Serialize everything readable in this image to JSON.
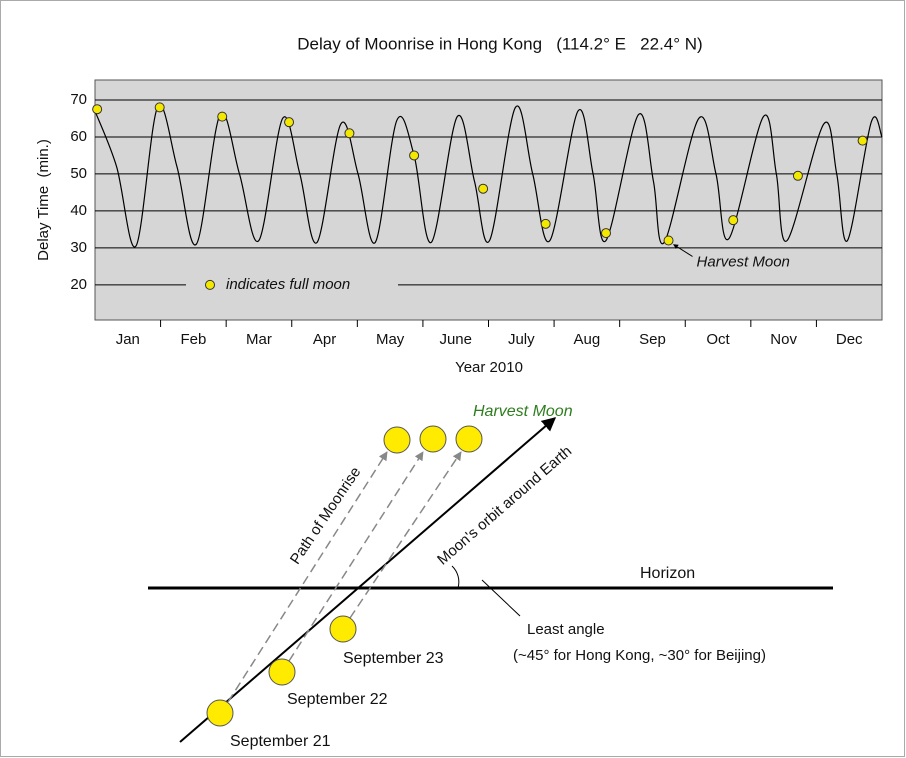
{
  "chart_data": {
    "type": "line",
    "title": "Delay of Moonrise in Hong Kong   (114.2° E   22.4° N)",
    "ylabel": "Delay Time  (min.)",
    "xlabel": "Year 2010",
    "categories": [
      "Jan",
      "Feb",
      "Mar",
      "Apr",
      "May",
      "June",
      "July",
      "Aug",
      "Sep",
      "Oct",
      "Nov",
      "Dec"
    ],
    "xlim": [
      0,
      365
    ],
    "ylim": [
      10.5,
      75.4
    ],
    "yticks": [
      20,
      30,
      40,
      50,
      60,
      70
    ],
    "grid": true,
    "series": [
      {
        "color": "#000000",
        "x": [
          0,
          10,
          19,
          29,
          38,
          47,
          58,
          67,
          76,
          87,
          95,
          103,
          114,
          122,
          130,
          140,
          148,
          156,
          168,
          176,
          183,
          195,
          203,
          211,
          224,
          231,
          237,
          252,
          259,
          264,
          280,
          288,
          294,
          310,
          316,
          321,
          338,
          344,
          349,
          360,
          365
        ],
        "values": [
          67,
          52,
          30.5,
          68,
          52,
          31,
          66,
          50,
          32,
          65,
          50,
          31.5,
          63.5,
          50,
          31.5,
          64.5,
          55,
          31.5,
          65.5,
          48,
          32,
          68,
          50,
          32,
          67,
          50,
          32,
          66,
          48,
          31.5,
          65,
          50,
          32.5,
          65.5,
          50,
          32,
          63.5,
          50,
          32,
          64,
          60
        ]
      },
      {
        "name": "indicates full moon",
        "color": "#f5e800",
        "marker": "circle",
        "x": [
          1,
          30,
          59,
          90,
          118,
          148,
          180,
          209,
          237,
          266,
          296,
          326,
          356
        ],
        "values": [
          67.5,
          68,
          65.5,
          64,
          61,
          55,
          46,
          36.5,
          34,
          32,
          37.5,
          49.5,
          59
        ]
      }
    ],
    "annotations": [
      {
        "text": "Harvest Moon",
        "x": 266,
        "y": 32
      }
    ]
  },
  "diagram": {
    "title": "Harvest Moon",
    "path_label": "Path of Moonrise",
    "orbit_label": "Moon's orbit around Earth",
    "horizon_label": "Horizon",
    "angle_label": "Least angle",
    "angle_note": "(~45° for Hong Kong, ~30° for Beijing)",
    "moons": [
      "September 21",
      "September 22",
      "September 23"
    ]
  }
}
